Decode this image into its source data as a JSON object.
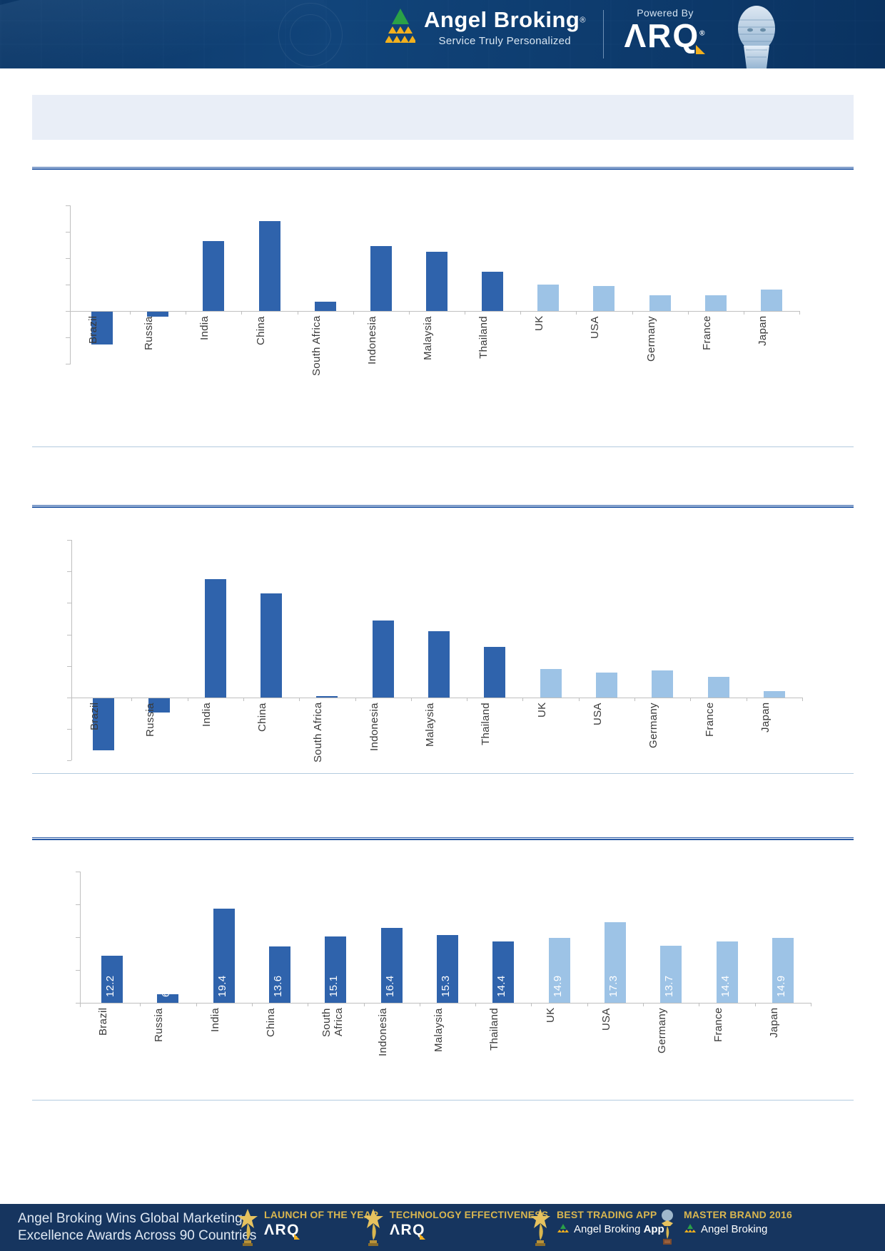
{
  "header": {
    "brand": "Angel Broking",
    "brand_reg": "®",
    "tagline": "Service Truly Personalized",
    "powered_by": "Powered By",
    "arq": "ΛRQ",
    "arq_reg": "®"
  },
  "title_band_text": "",
  "colors": {
    "header_bg": "#0e3a68",
    "footer_bg": "#16355f",
    "title_band_bg": "#e9eef7",
    "rule_dark": "#2a5ba6",
    "rule_light": "#b3cbdf",
    "bar_emerging_dark_blue": "#2f63ac",
    "bar_developed_light_blue": "#9dc3e6",
    "axis_gray": "#bfbfbf",
    "award_gold": "#d9b64f"
  },
  "chart_data": [
    {
      "type": "bar",
      "title": "",
      "categories": [
        "Brazil",
        "Russia",
        "India",
        "China",
        "South Africa",
        "Indonesia",
        "Malaysia",
        "Thailand",
        "UK",
        "USA",
        "Germany",
        "France",
        "Japan"
      ],
      "values": [
        -2.5,
        -0.4,
        5.3,
        6.8,
        0.7,
        4.9,
        4.5,
        3.0,
        2.0,
        1.9,
        1.2,
        1.2,
        1.6
      ],
      "values_estimated": true,
      "emerging_count": 8,
      "bar_palette": {
        "emerging": "#2f63ac",
        "developed": "#9dc3e6"
      },
      "data_labels_shown": false,
      "data_labels": [],
      "y_axis": {
        "min": -4,
        "max": 8,
        "tick_step": 2,
        "baseline_value": 0,
        "tick_labels_visible": false
      },
      "grid": false,
      "legend": false
    },
    {
      "type": "bar",
      "title": "",
      "categories": [
        "Brazil",
        "Russia",
        "India",
        "China",
        "South Africa",
        "Indonesia",
        "Malaysia",
        "Thailand",
        "UK",
        "USA",
        "Germany",
        "France",
        "Japan"
      ],
      "values": [
        -3.3,
        -0.9,
        7.5,
        6.6,
        0.1,
        4.9,
        4.2,
        3.2,
        1.8,
        1.6,
        1.7,
        1.3,
        0.4
      ],
      "values_estimated": true,
      "emerging_count": 8,
      "bar_palette": {
        "emerging": "#2f63ac",
        "developed": "#9dc3e6"
      },
      "data_labels_shown": false,
      "data_labels": [],
      "y_axis": {
        "min": -4,
        "max": 10,
        "tick_step": 2,
        "baseline_value": 0,
        "tick_labels_visible": false
      },
      "grid": false,
      "legend": false
    },
    {
      "type": "bar",
      "title": "",
      "categories": [
        "Brazil",
        "Russia",
        "India",
        "China",
        "South\nAfrica",
        "Indonesia",
        "Malaysia",
        "Thailand",
        "UK",
        "USA",
        "Germany",
        "France",
        "Japan"
      ],
      "values": [
        12.2,
        6.3,
        19.4,
        13.6,
        15.1,
        16.4,
        15.3,
        14.4,
        14.9,
        17.3,
        13.7,
        14.4,
        14.9
      ],
      "values_estimated": false,
      "emerging_count": 8,
      "bar_palette": {
        "emerging": "#2f63ac",
        "developed": "#9dc3e6"
      },
      "data_labels_shown": true,
      "data_labels": [
        "12.2",
        "6.3",
        "19.4",
        "13.6",
        "15.1",
        "16.4",
        "15.3",
        "14.4",
        "14.9",
        "17.3",
        "13.7",
        "14.4",
        "14.9"
      ],
      "y_axis": {
        "min": 5,
        "max": 25,
        "tick_step": 5,
        "baseline_value": 5,
        "tick_labels_visible": false
      },
      "grid": false,
      "legend": false
    }
  ],
  "footer": {
    "message_line1": "Angel Broking Wins Global Marketing",
    "message_line2": "Excellence Awards Across 90 Countries",
    "awards": [
      {
        "title": "LAUNCH OF THE YEAR",
        "subtitle": "ΛRQ",
        "icon": "star-trophy-icon"
      },
      {
        "title": "TECHNOLOGY EFFECTIVENESS",
        "subtitle": "ΛRQ",
        "icon": "star-trophy-icon"
      },
      {
        "title": "BEST TRADING APP",
        "subtitle_prefix": "Angel Broking ",
        "subtitle_bold": "App",
        "icon": "star-trophy-icon"
      },
      {
        "title": "MASTER BRAND 2016",
        "subtitle_prefix": "Angel Broking",
        "subtitle_bold": "",
        "icon": "globe-trophy-icon"
      }
    ]
  }
}
